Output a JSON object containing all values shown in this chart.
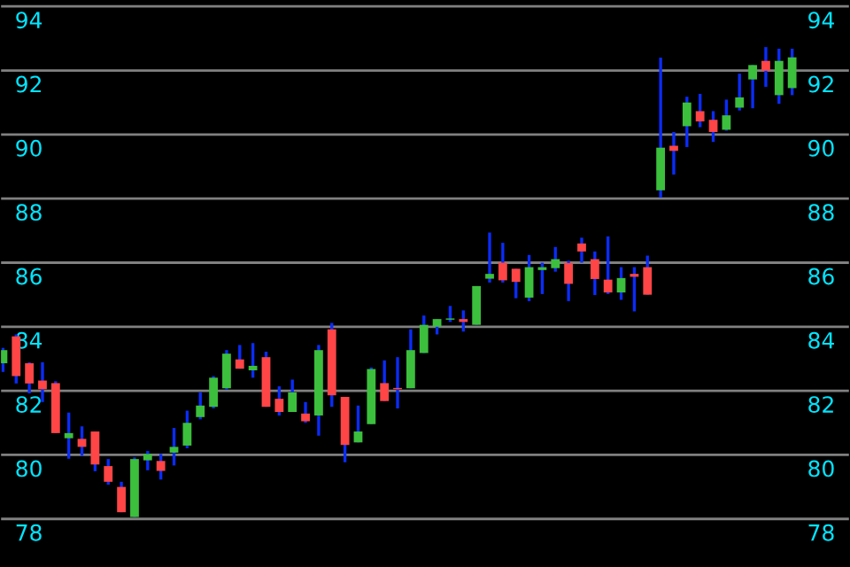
{
  "chart_data": {
    "type": "candlestick",
    "categories": [
      null,
      null,
      null,
      null,
      null,
      null,
      null,
      null,
      null,
      null,
      null,
      null,
      null,
      null,
      null,
      null,
      null,
      null,
      null,
      null,
      null,
      null,
      null,
      null,
      null,
      null,
      null,
      null,
      null,
      null,
      null,
      null,
      null,
      null,
      null,
      null,
      null,
      null,
      null,
      null,
      null,
      null,
      null,
      null,
      null,
      null,
      null,
      null,
      null,
      null,
      null,
      null,
      null,
      null,
      null,
      null,
      null,
      null,
      null,
      null,
      null
    ],
    "ohlc": [
      [
        82.86,
        83.34,
        82.59,
        83.27
      ],
      [
        83.7,
        83.76,
        82.23,
        82.46
      ],
      [
        82.86,
        82.89,
        81.92,
        82.23
      ],
      [
        82.32,
        82.89,
        81.65,
        82.05
      ],
      [
        82.24,
        82.3,
        80.68,
        80.68
      ],
      [
        80.52,
        81.32,
        79.88,
        80.68
      ],
      [
        80.5,
        80.89,
        79.97,
        80.25
      ],
      [
        80.73,
        80.73,
        79.49,
        79.7
      ],
      [
        79.65,
        79.87,
        79.07,
        79.16
      ],
      [
        79.0,
        79.16,
        78.21,
        78.21
      ],
      [
        78.06,
        79.92,
        78.06,
        79.87
      ],
      [
        79.83,
        80.12,
        79.52,
        80.03
      ],
      [
        79.81,
        80.03,
        79.23,
        79.5
      ],
      [
        80.07,
        80.84,
        79.67,
        80.25
      ],
      [
        80.29,
        81.38,
        80.21,
        81.0
      ],
      [
        81.18,
        81.95,
        81.11,
        81.54
      ],
      [
        81.5,
        82.46,
        81.45,
        82.41
      ],
      [
        82.08,
        83.27,
        82.04,
        83.16
      ],
      [
        82.98,
        83.43,
        82.69,
        82.69
      ],
      [
        82.64,
        83.49,
        82.41,
        82.78
      ],
      [
        83.05,
        83.22,
        81.5,
        81.5
      ],
      [
        81.75,
        82.14,
        81.23,
        81.34
      ],
      [
        81.34,
        82.35,
        81.34,
        81.95
      ],
      [
        81.29,
        81.65,
        81.0,
        81.05
      ],
      [
        81.23,
        83.43,
        80.6,
        83.27
      ],
      [
        83.92,
        84.12,
        81.5,
        81.86
      ],
      [
        81.81,
        81.81,
        79.77,
        80.31
      ],
      [
        80.39,
        81.54,
        80.39,
        80.73
      ],
      [
        80.96,
        82.73,
        80.96,
        82.68
      ],
      [
        82.24,
        82.95,
        81.68,
        81.68
      ],
      [
        82.08,
        83.05,
        81.45,
        82.05
      ],
      [
        82.08,
        83.92,
        82.08,
        83.27
      ],
      [
        83.18,
        84.35,
        83.18,
        84.06
      ],
      [
        84.0,
        84.24,
        83.76,
        84.24
      ],
      [
        84.22,
        84.65,
        84.15,
        84.26
      ],
      [
        84.24,
        84.51,
        83.85,
        84.15
      ],
      [
        84.06,
        85.27,
        84.06,
        85.27
      ],
      [
        85.5,
        86.94,
        85.38,
        85.65
      ],
      [
        86.0,
        86.62,
        85.38,
        85.45
      ],
      [
        85.81,
        85.81,
        84.89,
        85.4
      ],
      [
        84.91,
        86.24,
        84.8,
        85.86
      ],
      [
        85.77,
        86.0,
        85.02,
        85.86
      ],
      [
        85.83,
        86.49,
        85.72,
        86.11
      ],
      [
        85.99,
        86.06,
        84.8,
        85.34
      ],
      [
        86.6,
        86.78,
        86.0,
        86.35
      ],
      [
        86.11,
        86.35,
        84.99,
        85.49
      ],
      [
        85.47,
        86.82,
        85.02,
        85.07
      ],
      [
        85.07,
        85.86,
        84.84,
        85.52
      ],
      [
        85.65,
        85.86,
        84.48,
        85.56
      ],
      [
        85.86,
        86.22,
        85.0,
        85.0
      ],
      [
        88.26,
        92.4,
        88.03,
        89.59
      ],
      [
        89.65,
        90.08,
        88.75,
        89.49
      ],
      [
        90.26,
        91.18,
        89.61,
        91.0
      ],
      [
        90.73,
        91.27,
        90.23,
        90.41
      ],
      [
        90.46,
        90.73,
        89.77,
        90.08
      ],
      [
        90.15,
        91.09,
        90.12,
        90.6
      ],
      [
        90.84,
        91.9,
        90.75,
        91.16
      ],
      [
        91.72,
        92.17,
        90.82,
        92.17
      ],
      [
        92.3,
        92.73,
        91.49,
        91.99
      ],
      [
        91.23,
        92.68,
        90.96,
        92.3
      ],
      [
        91.45,
        92.68,
        91.23,
        92.41
      ]
    ],
    "ylim": [
      76.5,
      94.2
    ],
    "y2lim": [
      76.5,
      94.2
    ],
    "y2ticks": [
      78,
      80,
      82,
      84,
      86,
      88,
      90,
      92,
      94
    ],
    "yticks": [
      78,
      80,
      82,
      84,
      86,
      88,
      90,
      92,
      94
    ],
    "grid": "y"
  }
}
